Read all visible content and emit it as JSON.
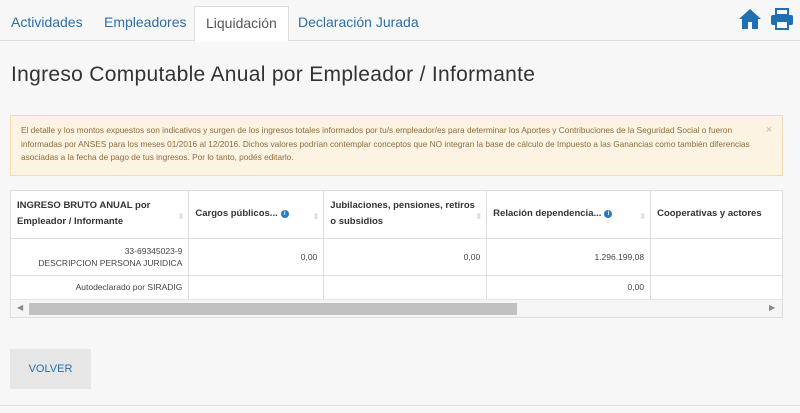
{
  "tabs": [
    {
      "label": "Actividades"
    },
    {
      "label": "Empleadores"
    },
    {
      "label": "Liquidación",
      "active": true
    },
    {
      "label": "Declaración Jurada"
    }
  ],
  "header_icons": [
    "home-icon",
    "print-icon"
  ],
  "accent_color": "#1f6fb2",
  "page_title": "Ingreso Computable Anual por Empleador / Informante",
  "alert": {
    "text": "El detalle y los montos expuestos son indicativos y surgen de los ingresos totales informados por tu/s empleador/es para determinar los Aportes y Contribuciones de la Seguridad Social o fueron informadas por ANSES para los meses 01/2016 al 12/2016. Dichos valores podrían contemplar conceptos que NO integran la base de cálculo de Impuesto a las Ganancias como también diferencias asociadas a la fecha de pago de tus ingresos. Por lo tanto, podés editarlo.",
    "close": "×"
  },
  "table": {
    "columns": [
      "INGRESO BRUTO ANUAL por Empleador / Informante",
      "Cargos públicos...",
      "Jubilaciones, pensiones, retiros o subsidios",
      "Relación dependencia...",
      "Cooperativas y actores"
    ],
    "rows": [
      {
        "entity_id": "33-69345023-9",
        "entity_name": "DESCRIPCION PERSONA JURIDICA",
        "cells": [
          "0,00",
          "0,00",
          "1.296.199,08",
          ""
        ]
      },
      {
        "entity_name": "Autodeclarado por SIRADIG",
        "cells": [
          "",
          "",
          "0,00",
          ""
        ]
      }
    ],
    "scroll_position_percent": 0
  },
  "back_button": "VOLVER"
}
